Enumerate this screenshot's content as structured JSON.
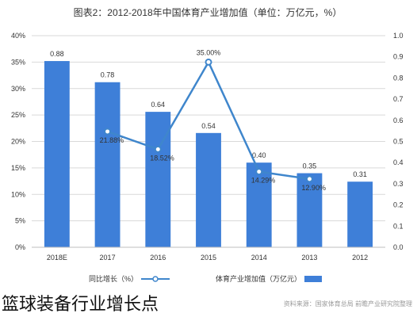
{
  "chart_data": {
    "type": "bar",
    "title": "图表2：2012-2018年中国体育产业增加值（单位：万亿元，%）",
    "categories": [
      "2018E",
      "2017",
      "2016",
      "2015",
      "2014",
      "2013",
      "2012"
    ],
    "series": [
      {
        "name": "体育产业增加值（万亿元）",
        "type": "bar",
        "axis": "right",
        "values": [
          0.88,
          0.78,
          0.64,
          0.54,
          0.4,
          0.35,
          0.31
        ],
        "value_labels": [
          "0.88",
          "0.78",
          "0.64",
          "0.54",
          "0.40",
          "0.35",
          "0.31"
        ]
      },
      {
        "name": "同比增长（%）",
        "type": "line",
        "axis": "left",
        "values": [
          null,
          21.88,
          18.52,
          35.0,
          14.29,
          12.9,
          null
        ],
        "value_labels": [
          "",
          "21.88%",
          "18.52%",
          "35.00%",
          "14.29%",
          "12.90%",
          ""
        ]
      }
    ],
    "left_axis": {
      "ylim": [
        0,
        40
      ],
      "ticks": [
        "0%",
        "5%",
        "10%",
        "15%",
        "20%",
        "25%",
        "30%",
        "35%",
        "40%"
      ]
    },
    "right_axis": {
      "ylim": [
        0,
        1.0
      ],
      "ticks": [
        "0.0",
        "0.1",
        "0.2",
        "0.3",
        "0.4",
        "0.5",
        "0.6",
        "0.7",
        "0.8",
        "0.9",
        "1.0"
      ]
    },
    "grid": true,
    "legend_position": "bottom",
    "source": "资料来源：国家体育总局 前瞻产业研究院整理",
    "colors": {
      "bar": "#3e7fd8",
      "line": "#3f86cc",
      "marker_fill": "#ffffff",
      "grid": "#d9d9d9",
      "text": "#333333"
    }
  },
  "caption": "篮球装备行业增长点"
}
